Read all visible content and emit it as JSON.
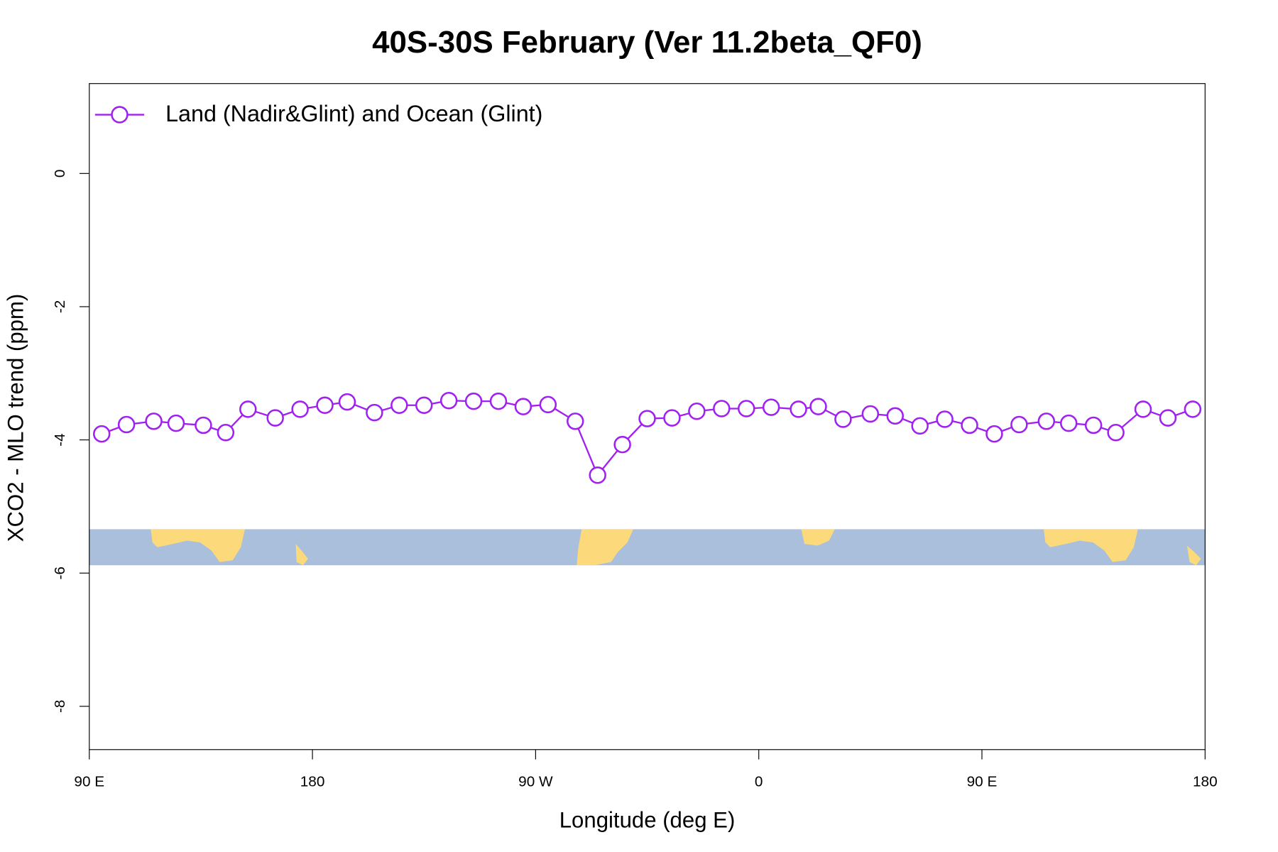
{
  "chart_data": {
    "type": "line",
    "title": "40S-30S February (Ver 11.2beta_QF0)",
    "x_label": "Longitude (deg E)",
    "y_label": "XCO2 - MLO trend (ppm)",
    "x": [
      95,
      105,
      116,
      125,
      136,
      145,
      154,
      165,
      175,
      185,
      194,
      205,
      215,
      225,
      235,
      245,
      255,
      265,
      275,
      286,
      295,
      305,
      315,
      325,
      335,
      345,
      355,
      365,
      376,
      384,
      394,
      405,
      415,
      425,
      435,
      445,
      455,
      465,
      476,
      485,
      495,
      504,
      515,
      525,
      535
    ],
    "series": [
      {
        "name": "Land (Nadir&Glint) and Ocean (Glint)",
        "color": "#a020f0",
        "values": [
          -3.91,
          -3.77,
          -3.72,
          -3.75,
          -3.78,
          -3.89,
          -3.54,
          -3.67,
          -3.54,
          -3.48,
          -3.43,
          -3.59,
          -3.48,
          -3.48,
          -3.41,
          -3.42,
          -3.42,
          -3.5,
          -3.47,
          -3.72,
          -4.53,
          -4.07,
          -3.68,
          -3.67,
          -3.57,
          -3.53,
          -3.53,
          -3.51,
          -3.54,
          -3.5,
          -3.69,
          -3.61,
          -3.64,
          -3.79,
          -3.69,
          -3.78,
          -3.91,
          -3.77,
          -3.72,
          -3.75,
          -3.78,
          -3.89,
          -3.54,
          -3.67,
          -3.54
        ]
      }
    ],
    "xlim": [
      90,
      540
    ],
    "xticks": [
      {
        "value": 90,
        "label": "90 E"
      },
      180,
      {
        "value": 270,
        "label": "90 W"
      },
      {
        "value": 360,
        "label": "0"
      },
      {
        "value": 450,
        "label": "90 E"
      },
      {
        "value": 540,
        "label": "180"
      }
    ],
    "ylim": [
      -8.65,
      1.35
    ],
    "yticks": [
      0,
      -2,
      -4,
      -6,
      -8
    ],
    "legend": "top-left"
  }
}
